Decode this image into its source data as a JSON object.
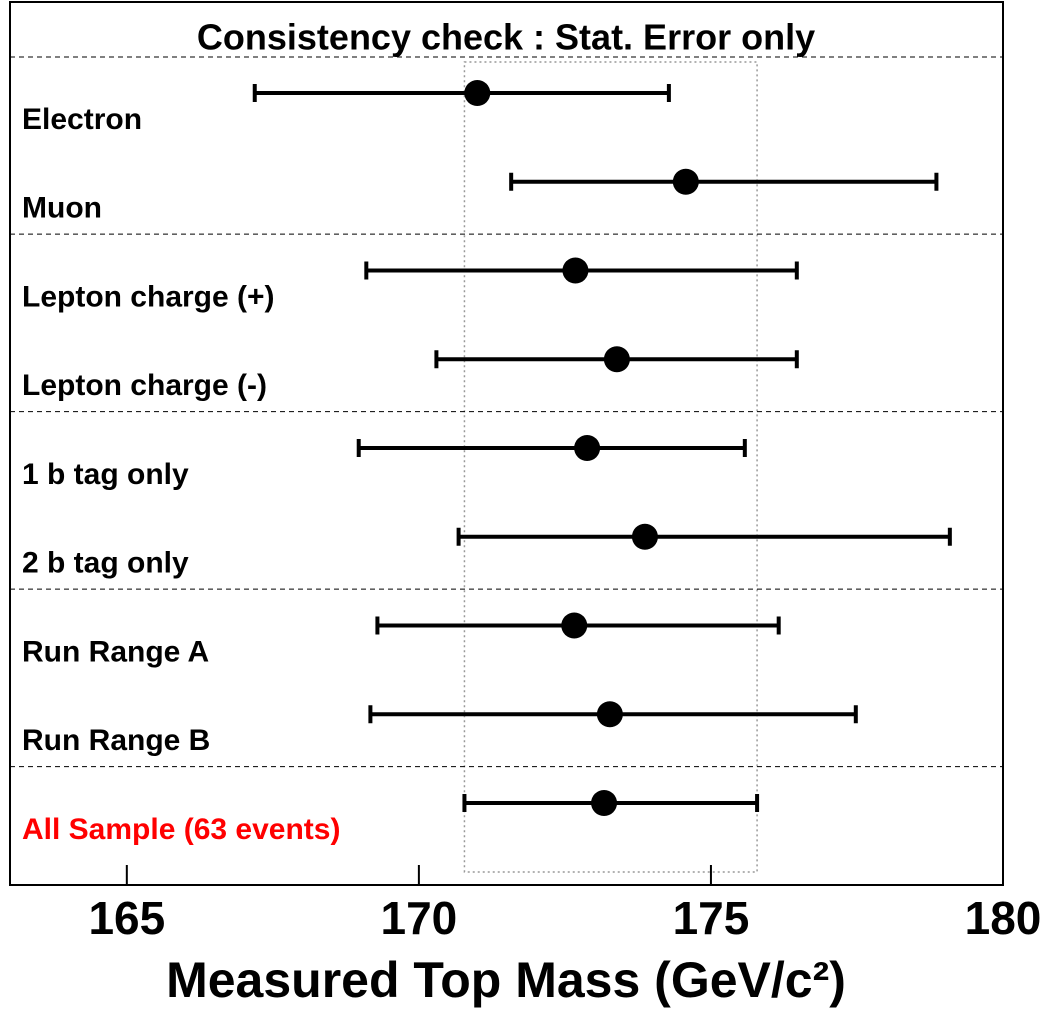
{
  "chart_data": {
    "type": "errorbar",
    "title": "Consistency check : Stat. Error only",
    "x_label": "Measured Top Mass (GeV/c²)",
    "categories": [
      "Electron",
      "Muon",
      "Lepton charge (+)",
      "Lepton charge (-)",
      "1 b tag only",
      "2 b tag only",
      "Run Range A",
      "Run Range B",
      "All Sample (63 events)"
    ],
    "label_colors": [
      "#000000",
      "#000000",
      "#000000",
      "#000000",
      "#000000",
      "#000000",
      "#000000",
      "#000000",
      "#ff0000"
    ],
    "values": [
      171.0,
      174.57,
      172.68,
      173.39,
      172.88,
      173.87,
      172.66,
      173.27,
      173.17
    ],
    "lows": [
      167.19,
      171.58,
      169.1,
      170.3,
      168.97,
      170.68,
      169.29,
      169.17,
      170.78
    ],
    "highs": [
      174.28,
      178.86,
      176.47,
      176.47,
      175.58,
      179.09,
      176.16,
      177.48,
      175.79
    ],
    "color": "#000000",
    "xlim": [
      163,
      180
    ],
    "xticks": [
      165,
      170,
      175,
      180
    ]
  }
}
